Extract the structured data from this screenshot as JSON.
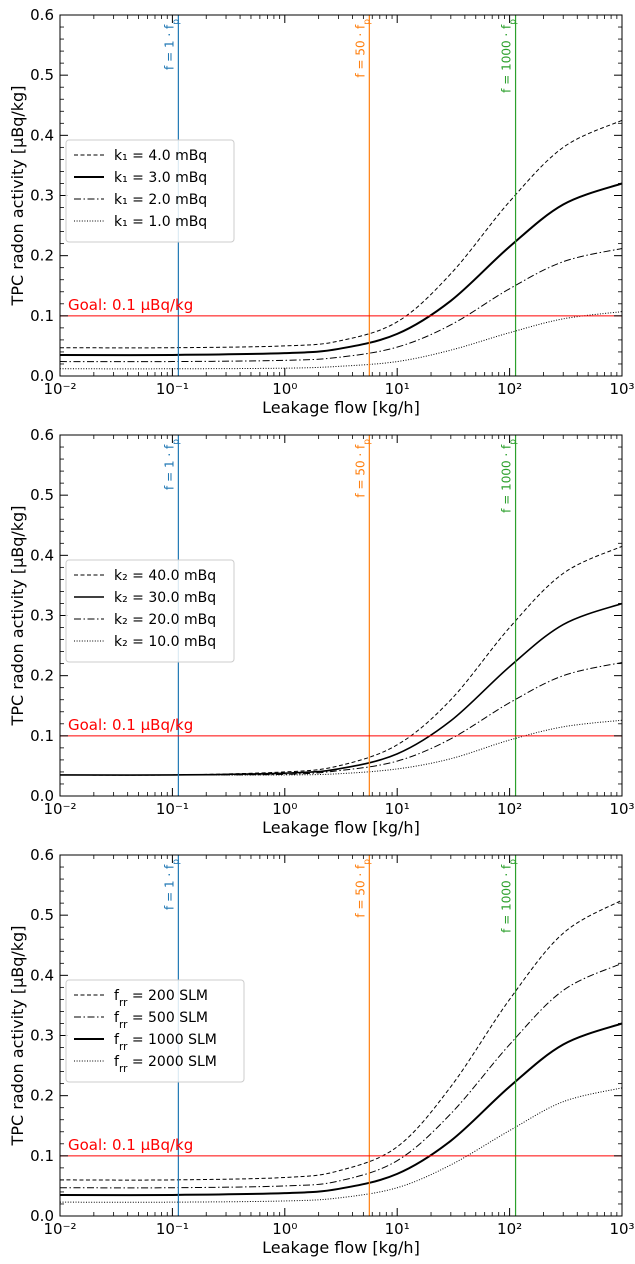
{
  "chart_data": [
    {
      "type": "line",
      "xlabel": "Leakage flow [kg/h]",
      "ylabel": "TPC radon activity [µBq/kg]",
      "xscale": "log",
      "xlim": [
        0.01,
        1000
      ],
      "ylim": [
        0,
        0.6
      ],
      "x_tick_labels": [
        "10⁻²",
        "10⁻¹",
        "10⁰",
        "10¹",
        "10²",
        "10³"
      ],
      "y_tick_labels": [
        "0.0",
        "0.1",
        "0.2",
        "0.3",
        "0.4",
        "0.5",
        "0.6"
      ],
      "legend_position": "center-left",
      "goal": {
        "value": 0.1,
        "label": "Goal: 0.1 µBq/kg",
        "color": "#ff0000"
      },
      "vlines": [
        {
          "x": 0.113,
          "label": "f = 1 · f_p",
          "color": "#1f77b4"
        },
        {
          "x": 5.65,
          "label": "f = 50 · f_p",
          "color": "#ff7f0e"
        },
        {
          "x": 113,
          "label": "f = 1000 · f_p",
          "color": "#2ca02c"
        }
      ],
      "x": [
        0.01,
        0.1,
        1,
        3,
        10,
        30,
        100,
        300,
        1000
      ],
      "series": [
        {
          "name": "k₁ = 4.0 mBq",
          "style": "dashed",
          "values": [
            0.047,
            0.047,
            0.05,
            0.058,
            0.09,
            0.17,
            0.29,
            0.38,
            0.425
          ]
        },
        {
          "name": "k₁ = 3.0 mBq",
          "style": "solid-bold",
          "values": [
            0.035,
            0.035,
            0.038,
            0.045,
            0.07,
            0.125,
            0.215,
            0.285,
            0.32
          ]
        },
        {
          "name": "k₁ = 2.0 mBq",
          "style": "dashdot",
          "values": [
            0.024,
            0.024,
            0.026,
            0.031,
            0.048,
            0.085,
            0.145,
            0.19,
            0.212
          ]
        },
        {
          "name": "k₁ = 1.0 mBq",
          "style": "dotted",
          "values": [
            0.012,
            0.012,
            0.013,
            0.016,
            0.024,
            0.043,
            0.072,
            0.095,
            0.107
          ]
        }
      ]
    },
    {
      "type": "line",
      "xlabel": "Leakage flow [kg/h]",
      "ylabel": "TPC radon activity [µBq/kg]",
      "xscale": "log",
      "xlim": [
        0.01,
        1000
      ],
      "ylim": [
        0,
        0.6
      ],
      "x_tick_labels": [
        "10⁻²",
        "10⁻¹",
        "10⁰",
        "10¹",
        "10²",
        "10³"
      ],
      "y_tick_labels": [
        "0.0",
        "0.1",
        "0.2",
        "0.3",
        "0.4",
        "0.5",
        "0.6"
      ],
      "legend_position": "center-left",
      "goal": {
        "value": 0.1,
        "label": "Goal: 0.1 µBq/kg",
        "color": "#ff0000"
      },
      "vlines": [
        {
          "x": 0.113,
          "label": "f = 1 · f_p",
          "color": "#1f77b4"
        },
        {
          "x": 5.65,
          "label": "f = 50 · f_p",
          "color": "#ff7f0e"
        },
        {
          "x": 113,
          "label": "f = 1000 · f_p",
          "color": "#2ca02c"
        }
      ],
      "x": [
        0.01,
        0.1,
        1,
        3,
        10,
        30,
        100,
        300,
        1000
      ],
      "series": [
        {
          "name": "k₂ = 40.0 mBq",
          "style": "dashed",
          "values": [
            0.035,
            0.035,
            0.04,
            0.05,
            0.085,
            0.16,
            0.28,
            0.37,
            0.415
          ]
        },
        {
          "name": "k₂ = 30.0 mBq",
          "style": "solid",
          "values": [
            0.035,
            0.035,
            0.038,
            0.045,
            0.07,
            0.125,
            0.215,
            0.285,
            0.32
          ]
        },
        {
          "name": "k₂ = 20.0 mBq",
          "style": "dashdot",
          "values": [
            0.035,
            0.035,
            0.036,
            0.042,
            0.058,
            0.095,
            0.155,
            0.2,
            0.222
          ]
        },
        {
          "name": "k₂ = 10.0 mBq",
          "style": "dotted",
          "values": [
            0.035,
            0.035,
            0.035,
            0.037,
            0.045,
            0.062,
            0.093,
            0.115,
            0.126
          ]
        }
      ]
    },
    {
      "type": "line",
      "xlabel": "Leakage flow [kg/h]",
      "ylabel": "TPC radon activity [µBq/kg]",
      "xscale": "log",
      "xlim": [
        0.01,
        1000
      ],
      "ylim": [
        0,
        0.6
      ],
      "x_tick_labels": [
        "10⁻²",
        "10⁻¹",
        "10⁰",
        "10¹",
        "10²",
        "10³"
      ],
      "y_tick_labels": [
        "0.0",
        "0.1",
        "0.2",
        "0.3",
        "0.4",
        "0.5",
        "0.6"
      ],
      "legend_position": "center-left",
      "goal": {
        "value": 0.1,
        "label": "Goal: 0.1 µBq/kg",
        "color": "#ff0000"
      },
      "vlines": [
        {
          "x": 0.113,
          "label": "f = 1 · f_p",
          "color": "#1f77b4"
        },
        {
          "x": 5.65,
          "label": "f = 50 · f_p",
          "color": "#ff7f0e"
        },
        {
          "x": 113,
          "label": "f = 1000 · f_p",
          "color": "#2ca02c"
        }
      ],
      "x": [
        0.01,
        0.1,
        1,
        3,
        10,
        30,
        100,
        300,
        1000
      ],
      "series": [
        {
          "name": "f_rr = 200 SLM",
          "style": "dashed",
          "values": [
            0.06,
            0.06,
            0.064,
            0.075,
            0.115,
            0.215,
            0.36,
            0.47,
            0.525
          ]
        },
        {
          "name": "f_rr = 500 SLM",
          "style": "dashdot",
          "values": [
            0.047,
            0.047,
            0.05,
            0.058,
            0.092,
            0.17,
            0.285,
            0.375,
            0.42
          ]
        },
        {
          "name": "f_rr = 1000 SLM",
          "style": "solid-bold",
          "values": [
            0.035,
            0.035,
            0.038,
            0.045,
            0.07,
            0.125,
            0.215,
            0.285,
            0.32
          ]
        },
        {
          "name": "f_rr = 2000 SLM",
          "style": "dotted",
          "values": [
            0.023,
            0.023,
            0.025,
            0.03,
            0.047,
            0.085,
            0.142,
            0.19,
            0.213
          ]
        }
      ]
    }
  ]
}
